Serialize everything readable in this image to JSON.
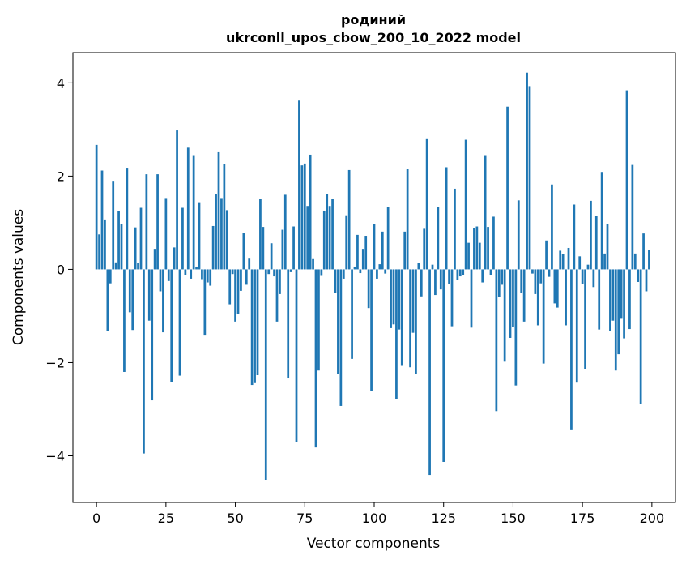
{
  "chart_data": {
    "type": "bar",
    "title": "родиний",
    "subtitle": "ukrconll_upos_cbow_200_10_2022 model",
    "xlabel": "Vector components",
    "ylabel": "Components values",
    "xlim": [
      -8.5,
      208.5
    ],
    "ylim": [
      -5.0,
      4.65
    ],
    "xticks": [
      0,
      25,
      50,
      75,
      100,
      125,
      150,
      175,
      200
    ],
    "xtick_labels": [
      "0",
      "25",
      "50",
      "75",
      "100",
      "125",
      "150",
      "175",
      "200"
    ],
    "yticks": [
      -4,
      -2,
      0,
      2,
      4
    ],
    "ytick_labels": [
      "−4",
      "−2",
      "0",
      "2",
      "4"
    ],
    "grid": false,
    "legend": "none",
    "bar_color": "#1f77b4",
    "x": [
      0,
      1,
      2,
      3,
      4,
      5,
      6,
      7,
      8,
      9,
      10,
      11,
      12,
      13,
      14,
      15,
      16,
      17,
      18,
      19,
      20,
      21,
      22,
      23,
      24,
      25,
      26,
      27,
      28,
      29,
      30,
      31,
      32,
      33,
      34,
      35,
      36,
      37,
      38,
      39,
      40,
      41,
      42,
      43,
      44,
      45,
      46,
      47,
      48,
      49,
      50,
      51,
      52,
      53,
      54,
      55,
      56,
      57,
      58,
      59,
      60,
      61,
      62,
      63,
      64,
      65,
      66,
      67,
      68,
      69,
      70,
      71,
      72,
      73,
      74,
      75,
      76,
      77,
      78,
      79,
      80,
      81,
      82,
      83,
      84,
      85,
      86,
      87,
      88,
      89,
      90,
      91,
      92,
      93,
      94,
      95,
      96,
      97,
      98,
      99,
      100,
      101,
      102,
      103,
      104,
      105,
      106,
      107,
      108,
      109,
      110,
      111,
      112,
      113,
      114,
      115,
      116,
      117,
      118,
      119,
      120,
      121,
      122,
      123,
      124,
      125,
      126,
      127,
      128,
      129,
      130,
      131,
      132,
      133,
      134,
      135,
      136,
      137,
      138,
      139,
      140,
      141,
      142,
      143,
      144,
      145,
      146,
      147,
      148,
      149,
      150,
      151,
      152,
      153,
      154,
      155,
      156,
      157,
      158,
      159,
      160,
      161,
      162,
      163,
      164,
      165,
      166,
      167,
      168,
      169,
      170,
      171,
      172,
      173,
      174,
      175,
      176,
      177,
      178,
      179,
      180,
      181,
      182,
      183,
      184,
      185,
      186,
      187,
      188,
      189,
      190,
      191,
      192,
      193,
      194,
      195,
      196,
      197,
      198,
      199
    ],
    "values": [
      2.67,
      0.75,
      2.12,
      1.07,
      -1.32,
      -0.3,
      1.9,
      0.15,
      1.25,
      0.97,
      -2.2,
      2.18,
      -0.92,
      -1.3,
      0.9,
      0.13,
      1.32,
      -3.95,
      2.04,
      -1.1,
      -2.81,
      0.44,
      2.04,
      -0.47,
      -1.35,
      1.53,
      -0.25,
      -2.42,
      0.47,
      2.98,
      -2.28,
      1.32,
      -0.12,
      2.61,
      -0.2,
      2.45,
      0.06,
      1.44,
      -0.21,
      -1.42,
      -0.28,
      -0.35,
      0.93,
      1.61,
      2.53,
      1.53,
      2.26,
      1.27,
      -0.75,
      -0.1,
      -1.12,
      -0.95,
      -0.46,
      0.78,
      -0.33,
      0.23,
      -2.48,
      -2.44,
      -2.27,
      1.52,
      0.91,
      -4.53,
      -0.1,
      0.56,
      -0.15,
      -1.12,
      -0.53,
      0.85,
      1.6,
      -2.34,
      -0.06,
      0.92,
      -3.71,
      3.62,
      2.23,
      2.27,
      1.36,
      2.46,
      0.22,
      -3.82,
      -2.17,
      -0.14,
      1.26,
      1.62,
      1.36,
      1.51,
      -0.5,
      -2.25,
      -2.93,
      -0.2,
      1.16,
      2.13,
      -1.92,
      0.06,
      0.74,
      -0.08,
      0.44,
      0.72,
      -0.83,
      -2.61,
      0.97,
      -0.2,
      0.11,
      0.81,
      -0.09,
      1.34,
      -1.26,
      -1.18,
      -2.79,
      -1.29,
      -2.07,
      0.81,
      2.16,
      -2.1,
      -1.36,
      -2.24,
      0.14,
      -0.58,
      0.87,
      2.81,
      -4.41,
      0.1,
      -0.55,
      1.34,
      -0.43,
      -4.13,
      2.19,
      -0.32,
      -1.22,
      1.73,
      -0.22,
      -0.15,
      -0.12,
      2.78,
      0.57,
      -1.25,
      0.88,
      0.92,
      0.57,
      -0.28,
      2.45,
      0.91,
      -0.13,
      1.13,
      -3.04,
      -0.6,
      -0.33,
      -1.98,
      3.49,
      -1.47,
      -1.24,
      -2.49,
      1.48,
      -0.51,
      -1.12,
      4.22,
      3.93,
      -0.09,
      -0.53,
      -1.2,
      -0.3,
      -2.02,
      0.62,
      -0.16,
      1.82,
      -0.73,
      -0.82,
      0.4,
      0.33,
      -1.2,
      0.46,
      -3.45,
      1.39,
      -2.43,
      0.28,
      -0.32,
      -2.14,
      0.1,
      1.47,
      -0.38,
      1.15,
      -1.29,
      2.09,
      0.34,
      0.97,
      -1.32,
      -1.1,
      -2.17,
      -1.82,
      -1.06,
      -1.48,
      3.84,
      -1.28,
      2.24,
      0.34,
      -0.27,
      -2.89,
      0.77,
      -0.47,
      0.42
    ]
  }
}
